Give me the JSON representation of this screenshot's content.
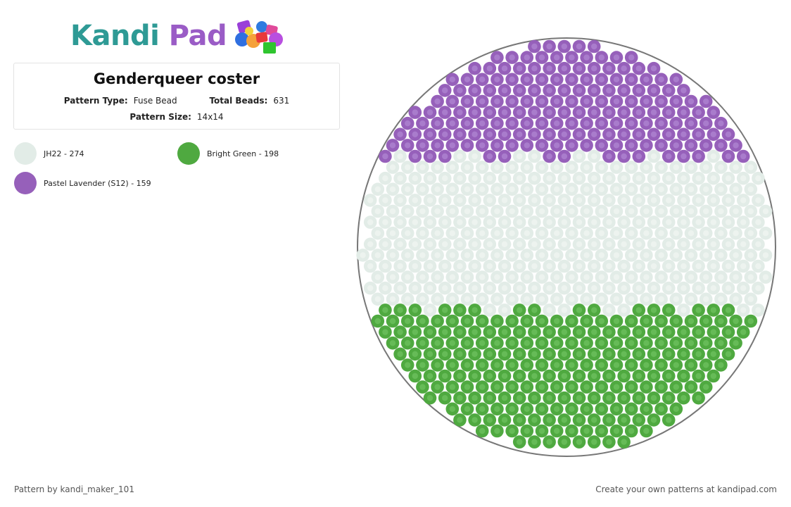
{
  "logo": {
    "k_text": "Kandi",
    "p_text": "Pad"
  },
  "pattern": {
    "title": "Genderqueer coster",
    "type_label": "Pattern Type:",
    "type_value": "Fuse Bead",
    "beads_label": "Total Beads:",
    "beads_value": "631",
    "size_label": "Pattern Size:",
    "size_value": "14x14"
  },
  "legend": [
    {
      "label": "JH22 - 274",
      "color": "#e2ece7"
    },
    {
      "label": "Bright Green - 198",
      "color": "#4fa940"
    },
    {
      "label": "Pastel Lavender (S12) - 159",
      "color": "#9660ba"
    }
  ],
  "colors": {
    "lavender": "#9660ba",
    "lavender_inner": "#a97ccc",
    "white": "#e2ece7",
    "white_inner": "#edf3ef",
    "green": "#4fa940",
    "green_inner": "#66bb57",
    "outline": "#777777"
  },
  "footer": {
    "credit": "Pattern by kandi_maker_101",
    "cta": "Create your own patterns at kandipad.com"
  }
}
